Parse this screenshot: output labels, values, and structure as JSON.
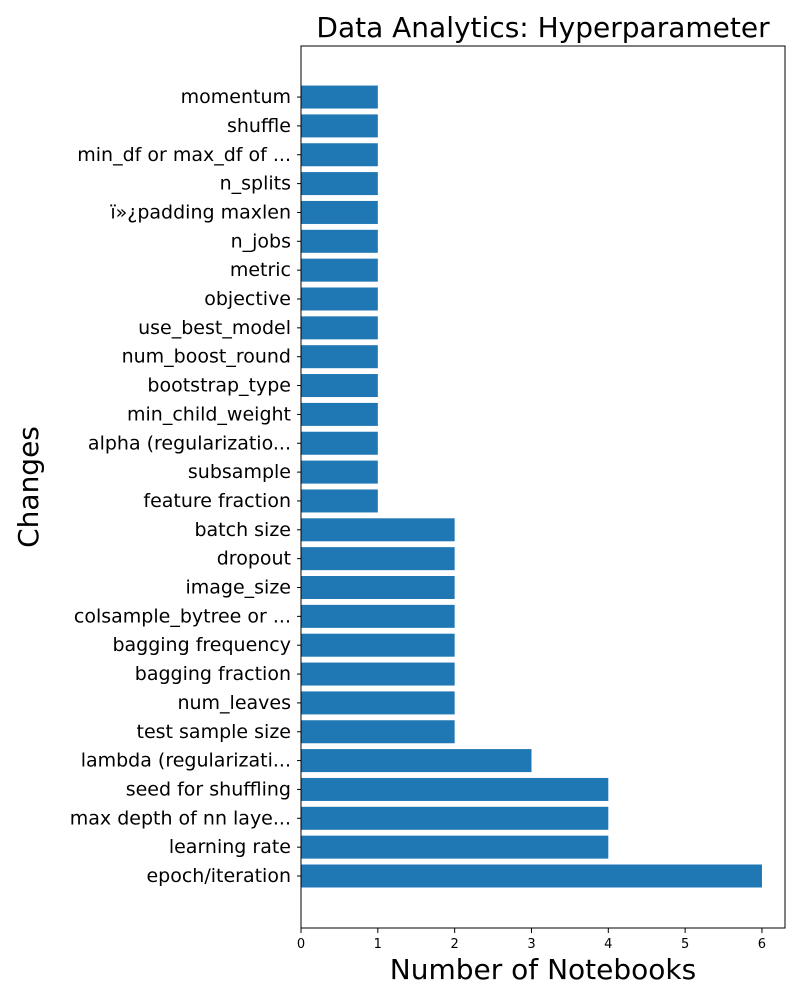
{
  "chart_data": {
    "type": "bar",
    "orientation": "horizontal",
    "title": "Data Analytics: Hyperparameter",
    "xlabel": "Number of Notebooks",
    "ylabel": "Changes",
    "categories": [
      "epoch/iteration",
      "learning rate",
      "max depth of nn laye...",
      "seed for shuffling",
      "lambda (regularizati...",
      "test sample size",
      "num_leaves",
      "bagging fraction",
      "bagging frequency",
      "colsample_bytree or ...",
      "image_size",
      "dropout",
      "batch size",
      "feature fraction",
      "subsample",
      "alpha (regularizatio...",
      "min_child_weight",
      "bootstrap_type",
      "num_boost_round",
      "use_best_model",
      "objective",
      "metric",
      "n_jobs",
      "ï»¿padding maxlen",
      "n_splits",
      "min_df or max_df of ...",
      "shuffle",
      "momentum"
    ],
    "values": [
      6,
      4,
      4,
      4,
      3,
      2,
      2,
      2,
      2,
      2,
      2,
      2,
      2,
      1,
      1,
      1,
      1,
      1,
      1,
      1,
      1,
      1,
      1,
      1,
      1,
      1,
      1,
      1
    ],
    "xlim": [
      0,
      6.3
    ],
    "xticks": [
      "0",
      "1",
      "2",
      "3",
      "4",
      "5",
      "6"
    ],
    "bar_color": "#1f77b4",
    "grid": false,
    "legend": "none"
  }
}
